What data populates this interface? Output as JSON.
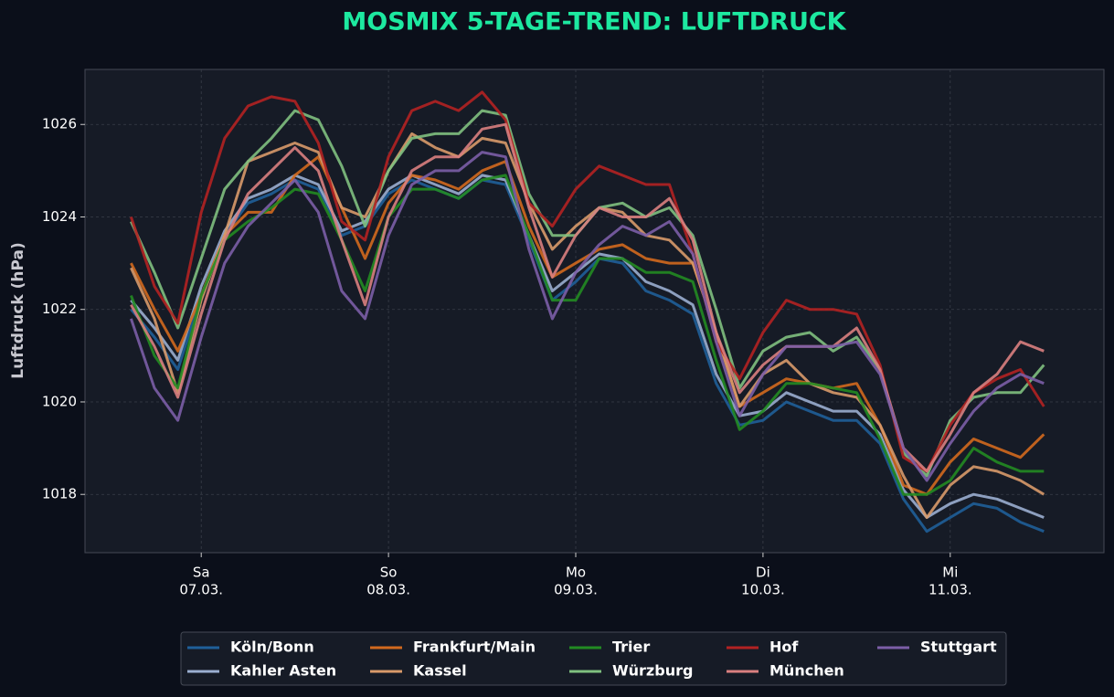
{
  "chart_data": {
    "type": "line",
    "title": "MOSMIX 5-TAGE-TREND: LUFTDRUCK",
    "y_label": "Luftdruck (hPa)",
    "grid": true,
    "legend": "bottom",
    "x": [
      0,
      3,
      6,
      9,
      12,
      15,
      18,
      21,
      24,
      27,
      30,
      33,
      36,
      39,
      42,
      45,
      48,
      51,
      54,
      57,
      60,
      63,
      66,
      69,
      72,
      75,
      78,
      81,
      84,
      87,
      90,
      93,
      96,
      99,
      102,
      105,
      108,
      111,
      114,
      117
    ],
    "xlim": [
      -5.9,
      124.7
    ],
    "xticks": [
      {
        "value": 9,
        "label": [
          "Sa",
          "07.03."
        ]
      },
      {
        "value": 33,
        "label": [
          "So",
          "08.03."
        ]
      },
      {
        "value": 57,
        "label": [
          "Mo",
          "09.03."
        ]
      },
      {
        "value": 81,
        "label": [
          "Di",
          "10.03."
        ]
      },
      {
        "value": 105,
        "label": [
          "Mi",
          "11.03."
        ]
      }
    ],
    "ylim": [
      1016.74,
      1027.19
    ],
    "yticks": [
      1018,
      1020,
      1022,
      1024,
      1026
    ],
    "series": [
      {
        "name": "Köln/Bonn",
        "color": "#1f5f99",
        "values": [
          1022.0,
          1021.4,
          1020.7,
          1022.3,
          1023.6,
          1024.3,
          1024.5,
          1024.8,
          1024.6,
          1023.6,
          1023.8,
          1024.5,
          1024.8,
          1024.6,
          1024.4,
          1024.8,
          1024.7,
          1023.5,
          1022.2,
          1022.6,
          1023.1,
          1023.0,
          1022.4,
          1022.2,
          1021.9,
          1020.4,
          1019.5,
          1019.6,
          1020.0,
          1019.8,
          1019.6,
          1019.6,
          1019.1,
          1017.9,
          1017.2,
          1017.5,
          1017.8,
          1017.7,
          1017.4,
          1017.2
        ]
      },
      {
        "name": "Kahler Asten",
        "color": "#9aaed0",
        "values": [
          1022.2,
          1021.6,
          1020.9,
          1022.5,
          1023.7,
          1024.4,
          1024.6,
          1024.9,
          1024.7,
          1023.7,
          1023.9,
          1024.6,
          1024.9,
          1024.7,
          1024.5,
          1024.9,
          1024.8,
          1023.6,
          1022.4,
          1022.8,
          1023.2,
          1023.1,
          1022.6,
          1022.4,
          1022.1,
          1020.6,
          1019.7,
          1019.8,
          1020.2,
          1020.0,
          1019.8,
          1019.8,
          1019.3,
          1018.1,
          1017.5,
          1017.8,
          1018.0,
          1017.9,
          1017.7,
          1017.5
        ]
      },
      {
        "name": "Frankfurt/Main",
        "color": "#d2691e",
        "values": [
          1023.0,
          1022.0,
          1021.1,
          1022.3,
          1023.6,
          1024.1,
          1024.1,
          1024.9,
          1025.3,
          1024.2,
          1023.1,
          1024.3,
          1024.9,
          1024.8,
          1024.6,
          1025.0,
          1025.2,
          1023.8,
          1022.7,
          1023.0,
          1023.3,
          1023.4,
          1023.1,
          1023.0,
          1023.0,
          1021.5,
          1019.9,
          1020.2,
          1020.5,
          1020.4,
          1020.3,
          1020.4,
          1019.5,
          1018.2,
          1018.0,
          1018.7,
          1019.2,
          1019.0,
          1018.8,
          1019.3
        ]
      },
      {
        "name": "Kassel",
        "color": "#d89a6a",
        "values": [
          1022.9,
          1021.8,
          1020.2,
          1022.2,
          1023.6,
          1025.2,
          1025.4,
          1025.6,
          1025.4,
          1024.2,
          1024.0,
          1025.0,
          1025.8,
          1025.5,
          1025.3,
          1025.7,
          1025.6,
          1024.3,
          1023.3,
          1023.8,
          1024.2,
          1024.1,
          1023.6,
          1023.5,
          1023.0,
          1021.5,
          1019.9,
          1020.6,
          1020.9,
          1020.4,
          1020.2,
          1020.1,
          1019.5,
          1018.4,
          1017.5,
          1018.2,
          1018.6,
          1018.5,
          1018.3,
          1018.0
        ]
      },
      {
        "name": "Trier",
        "color": "#228b22",
        "values": [
          1022.3,
          1021.0,
          1020.3,
          1022.3,
          1023.5,
          1023.9,
          1024.2,
          1024.6,
          1024.5,
          1023.5,
          1022.4,
          1024.0,
          1024.6,
          1024.6,
          1024.4,
          1024.8,
          1024.9,
          1023.6,
          1022.2,
          1022.2,
          1023.1,
          1023.1,
          1022.8,
          1022.8,
          1022.6,
          1020.9,
          1019.4,
          1019.8,
          1020.4,
          1020.4,
          1020.3,
          1020.2,
          1019.2,
          1018.0,
          1018.0,
          1018.3,
          1019.0,
          1018.7,
          1018.5,
          1018.5
        ]
      },
      {
        "name": "Würzburg",
        "color": "#7fc07f",
        "values": [
          1023.9,
          1022.8,
          1021.6,
          1023.1,
          1024.6,
          1025.2,
          1025.7,
          1026.3,
          1026.1,
          1025.1,
          1023.8,
          1025.0,
          1025.7,
          1025.8,
          1025.8,
          1026.3,
          1026.2,
          1024.5,
          1023.6,
          1023.6,
          1024.2,
          1024.3,
          1024.0,
          1024.2,
          1023.6,
          1022.0,
          1020.3,
          1021.1,
          1021.4,
          1021.5,
          1021.1,
          1021.4,
          1020.7,
          1018.9,
          1018.4,
          1019.6,
          1020.1,
          1020.2,
          1020.2,
          1020.8
        ]
      },
      {
        "name": "Hof",
        "color": "#b22222",
        "values": [
          1024.0,
          1022.5,
          1021.7,
          1024.1,
          1025.7,
          1026.4,
          1026.6,
          1026.5,
          1025.6,
          1023.9,
          1023.5,
          1025.3,
          1026.3,
          1026.5,
          1026.3,
          1026.7,
          1026.1,
          1024.3,
          1023.8,
          1024.6,
          1025.1,
          1024.9,
          1024.7,
          1024.7,
          1023.2,
          1021.3,
          1020.5,
          1021.5,
          1022.2,
          1022.0,
          1022.0,
          1021.9,
          1020.8,
          1018.8,
          1018.5,
          1019.5,
          1020.2,
          1020.5,
          1020.7,
          1019.9
        ]
      },
      {
        "name": "München",
        "color": "#d98080",
        "values": [
          1022.1,
          1021.2,
          1020.1,
          1021.9,
          1023.5,
          1024.5,
          1025.0,
          1025.5,
          1025.0,
          1023.5,
          1022.1,
          1024.0,
          1025.0,
          1025.3,
          1025.3,
          1025.9,
          1026.0,
          1024.2,
          1022.7,
          1023.6,
          1024.2,
          1024.0,
          1024.0,
          1024.4,
          1023.5,
          1021.5,
          1020.2,
          1020.8,
          1021.2,
          1021.2,
          1021.2,
          1021.6,
          1020.7,
          1019.0,
          1018.5,
          1019.3,
          1020.2,
          1020.6,
          1021.3,
          1021.1
        ]
      },
      {
        "name": "Stuttgart",
        "color": "#7b5ea7",
        "values": [
          1021.8,
          1020.3,
          1019.6,
          1021.4,
          1023.0,
          1023.8,
          1024.3,
          1024.8,
          1024.1,
          1022.4,
          1021.8,
          1023.6,
          1024.7,
          1025.0,
          1025.0,
          1025.4,
          1025.3,
          1023.3,
          1021.8,
          1022.8,
          1023.4,
          1023.8,
          1023.6,
          1023.9,
          1023.2,
          1021.3,
          1019.7,
          1020.6,
          1021.2,
          1021.2,
          1021.2,
          1021.3,
          1020.6,
          1019.0,
          1018.3,
          1019.1,
          1019.8,
          1020.3,
          1020.6,
          1020.4
        ]
      }
    ]
  }
}
